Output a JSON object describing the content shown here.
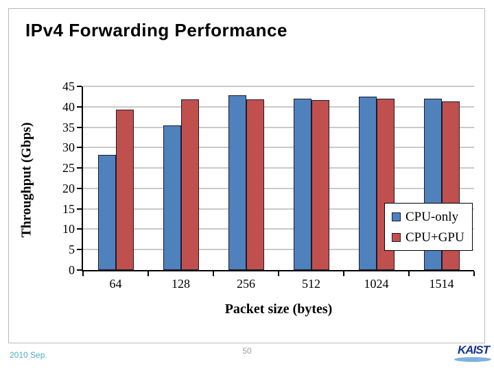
{
  "slide": {
    "title": "IPv4 Forwarding Performance"
  },
  "footer": {
    "date": "2010 Sep.",
    "page_number": "50",
    "logo_text": "KAIST"
  },
  "chart_data": {
    "type": "bar",
    "title": "",
    "categories": [
      "64",
      "128",
      "256",
      "512",
      "1024",
      "1514"
    ],
    "series": [
      {
        "name": "CPU-only",
        "color": "#4f81bd",
        "values": [
          28.2,
          35.5,
          42.8,
          41.9,
          42.5,
          42.0
        ]
      },
      {
        "name": "CPU+GPU",
        "color": "#c0504d",
        "values": [
          39.3,
          41.8,
          41.8,
          41.6,
          41.9,
          41.3
        ]
      }
    ],
    "xlabel": "Packet size (bytes)",
    "ylabel": "Throughput (Gbps)",
    "ylim": [
      0,
      45
    ],
    "ytick_step": 5,
    "grid": true,
    "legend_position": "right-middle",
    "colors": {
      "gridline": "#c9c9c9",
      "axis": "#000000",
      "bar_border": "#1a1a2e"
    }
  }
}
